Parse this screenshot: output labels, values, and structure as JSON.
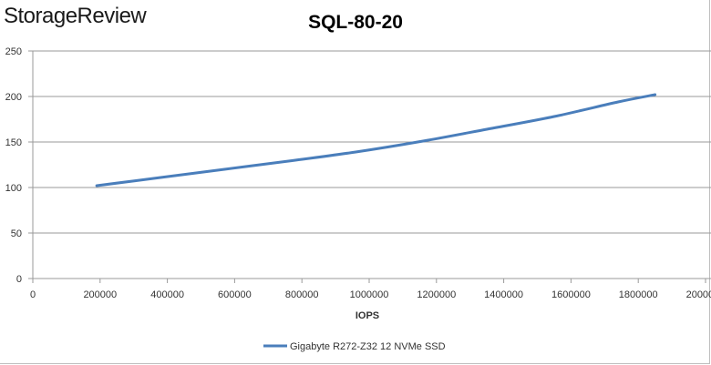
{
  "branding": {
    "logo_text": "StorageReview"
  },
  "chart_data": {
    "type": "line",
    "title": "SQL-80-20",
    "xlabel": "IOPS",
    "ylabel": "",
    "xlim": [
      0,
      2000000
    ],
    "ylim": [
      0,
      250
    ],
    "x_ticks": [
      "0",
      "200000",
      "400000",
      "600000",
      "800000",
      "1000000",
      "1200000",
      "1400000",
      "1600000",
      "1800000",
      "2000000"
    ],
    "y_ticks": [
      "0",
      "50",
      "100",
      "150",
      "200",
      "250"
    ],
    "grid": "horizontal",
    "legend_position": "bottom",
    "series": [
      {
        "name": "Gigabyte R272-Z32 12 NVMe SSD",
        "color": "#4a7ebb",
        "points": [
          {
            "x": 190000,
            "y": 102
          },
          {
            "x": 380000,
            "y": 111
          },
          {
            "x": 570000,
            "y": 120
          },
          {
            "x": 760000,
            "y": 129
          },
          {
            "x": 960000,
            "y": 139
          },
          {
            "x": 1160000,
            "y": 151
          },
          {
            "x": 1350000,
            "y": 164
          },
          {
            "x": 1550000,
            "y": 178
          },
          {
            "x": 1740000,
            "y": 194
          },
          {
            "x": 1850000,
            "y": 202
          }
        ]
      }
    ]
  }
}
